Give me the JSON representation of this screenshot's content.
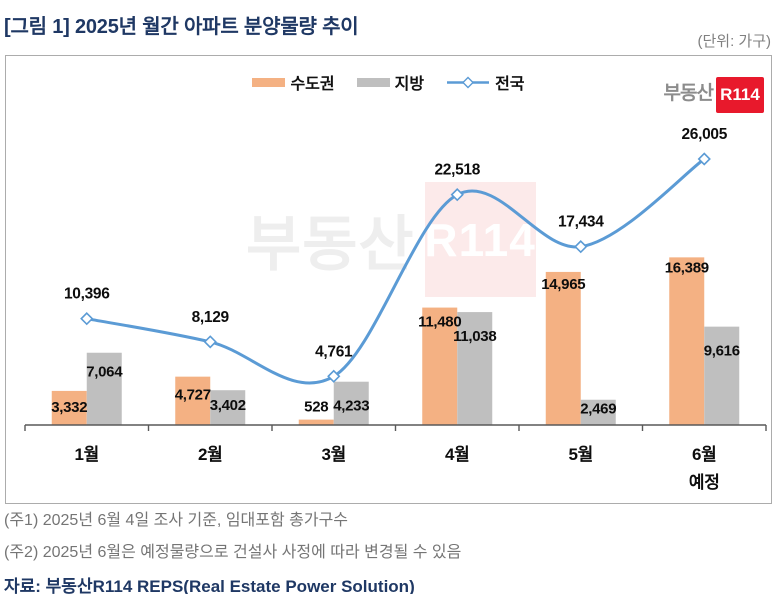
{
  "header": {
    "title": "[그림 1] 2025년 월간 아파트 분양물량 추이",
    "unit": "(단위: 가구)"
  },
  "logo": {
    "prefix": "부동산",
    "badge": "R114"
  },
  "watermark": {
    "prefix": "부동산",
    "badge": "R114"
  },
  "legend": [
    {
      "label": "수도권",
      "kind": "bar",
      "color": "#F4B183"
    },
    {
      "label": "지방",
      "kind": "bar",
      "color": "#BFBFBF"
    },
    {
      "label": "전국",
      "kind": "line",
      "color": "#5B9BD5"
    }
  ],
  "chart_data": {
    "type": "bar+line",
    "title": "2025년 월간 아파트 분양물량 추이",
    "unit": "가구",
    "categories": [
      "1월",
      "2월",
      "3월",
      "4월",
      "5월",
      "6월"
    ],
    "category_sublabels": [
      "",
      "",
      "",
      "",
      "",
      "예정"
    ],
    "series": [
      {
        "name": "수도권",
        "type": "bar",
        "color": "#F4B183",
        "values": [
          3332,
          4727,
          528,
          11480,
          14965,
          16389
        ]
      },
      {
        "name": "지방",
        "type": "bar",
        "color": "#BFBFBF",
        "values": [
          7064,
          3402,
          4233,
          11038,
          2469,
          9616
        ]
      },
      {
        "name": "전국",
        "type": "line",
        "color": "#5B9BD5",
        "marker": "diamond",
        "values": [
          10396,
          8129,
          4761,
          22518,
          17434,
          26005
        ]
      }
    ],
    "ylim": [
      0,
      27000
    ],
    "grid": false,
    "legend_position": "top-center",
    "data_labels": true
  },
  "notes": [
    "(주1) 2025년 6월 4일 조사 기준, 임대포함 총가구수",
    "(주2) 2025년 6월은 예정물량으로 건설사 사정에 따라 변경될 수 있음"
  ],
  "source": "자료: 부동산R114 REPS(Real Estate Power Solution)",
  "colors": {
    "title_navy": "#1F3864",
    "brand_red": "#E8192C",
    "bar_capital": "#F4B183",
    "bar_regional": "#BFBFBF",
    "line_national": "#5B9BD5",
    "note_gray": "#757575",
    "axis_gray": "#595959"
  }
}
